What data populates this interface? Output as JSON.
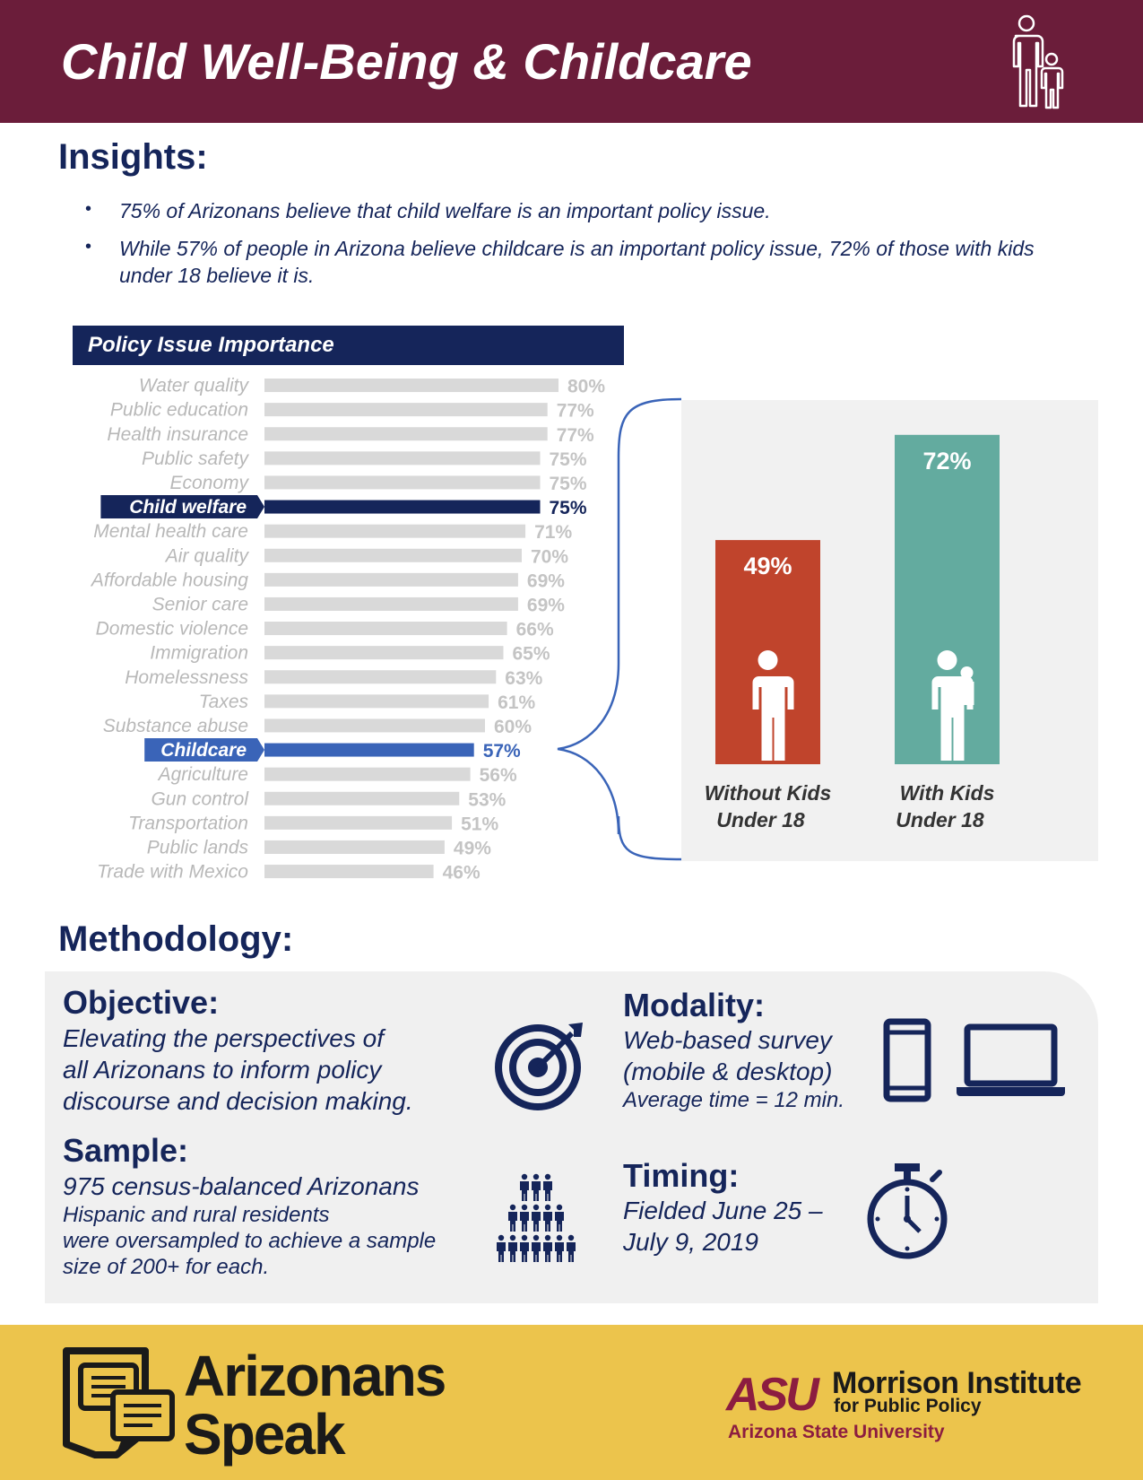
{
  "header": {
    "title": "Child Well-Being & Childcare",
    "icon": "parent-child-icon",
    "bg_color": "#6b1d3a"
  },
  "insights": {
    "heading": "Insights:",
    "bullets": [
      "75% of Arizonans believe that child welfare is an important policy issue.",
      "While 57% of people in Arizona believe childcare is an important policy issue, 72% of those with kids under 18 believe it is."
    ]
  },
  "chart_data": [
    {
      "type": "bar",
      "orientation": "horizontal",
      "title": "Policy Issue Importance",
      "categories": [
        "Water quality",
        "Public education",
        "Health insurance",
        "Public safety",
        "Economy",
        "Child welfare",
        "Mental health care",
        "Air quality",
        "Affordable housing",
        "Senior care",
        "Domestic violence",
        "Immigration",
        "Homelessness",
        "Taxes",
        "Substance abuse",
        "Childcare",
        "Agriculture",
        "Gun control",
        "Transportation",
        "Public lands",
        "Trade with Mexico"
      ],
      "values": [
        80,
        77,
        77,
        75,
        75,
        75,
        71,
        70,
        69,
        69,
        66,
        65,
        63,
        61,
        60,
        57,
        56,
        53,
        51,
        49,
        46
      ],
      "value_labels": [
        "80%",
        "77%",
        "77%",
        "75%",
        "75%",
        "75%",
        "71%",
        "70%",
        "69%",
        "69%",
        "66%",
        "65%",
        "63%",
        "61%",
        "60%",
        "57%",
        "56%",
        "53%",
        "51%",
        "49%",
        "46%"
      ],
      "highlighted": {
        "Child welfare": "#15255a",
        "Childcare": "#3a64b8"
      },
      "default_color": "#d9d9d9",
      "grid": false,
      "legend": "none"
    },
    {
      "type": "bar",
      "categories": [
        "Without Kids Under 18",
        "With Kids Under 18"
      ],
      "category_lines": [
        [
          "Without Kids",
          "Under 18"
        ],
        [
          "With Kids",
          "Under 18"
        ]
      ],
      "values": [
        49,
        72
      ],
      "value_labels": [
        "49%",
        "72%"
      ],
      "colors": [
        "#c0442c",
        "#63ab9f"
      ],
      "icons": [
        "person-icon",
        "parent-holding-child-icon"
      ]
    }
  ],
  "methodology": {
    "heading": "Methodology:",
    "objective": {
      "heading": "Objective:",
      "lines": [
        "Elevating the perspectives of",
        "all Arizonans to inform policy",
        "discourse and decision making."
      ],
      "icon": "target-icon"
    },
    "sample": {
      "heading": "Sample:",
      "lead": "975 census-balanced Arizonans",
      "lines": [
        "Hispanic and rural residents",
        "were oversampled to achieve a sample",
        "size of 200+ for each."
      ],
      "icon": "people-group-icon"
    },
    "modality": {
      "heading": "Modality:",
      "lines": [
        "Web-based survey",
        "(mobile & desktop)"
      ],
      "note": "Average time = 12 min.",
      "icons": [
        "mobile-phone-icon",
        "laptop-icon"
      ]
    },
    "timing": {
      "heading": "Timing:",
      "lines": [
        "Fielded June 25 –",
        "July 9, 2019"
      ],
      "icon": "stopwatch-icon"
    }
  },
  "footer": {
    "brand_line1": "Arizonans",
    "brand_line2": "Speak",
    "brand_icon": "arizona-chat-bubbles-icon",
    "asu_mark": "ASU",
    "institute_line1": "Morrison Institute",
    "institute_line2": "for Public Policy",
    "university": "Arizona State University",
    "bg_color": "#ecc44c"
  }
}
